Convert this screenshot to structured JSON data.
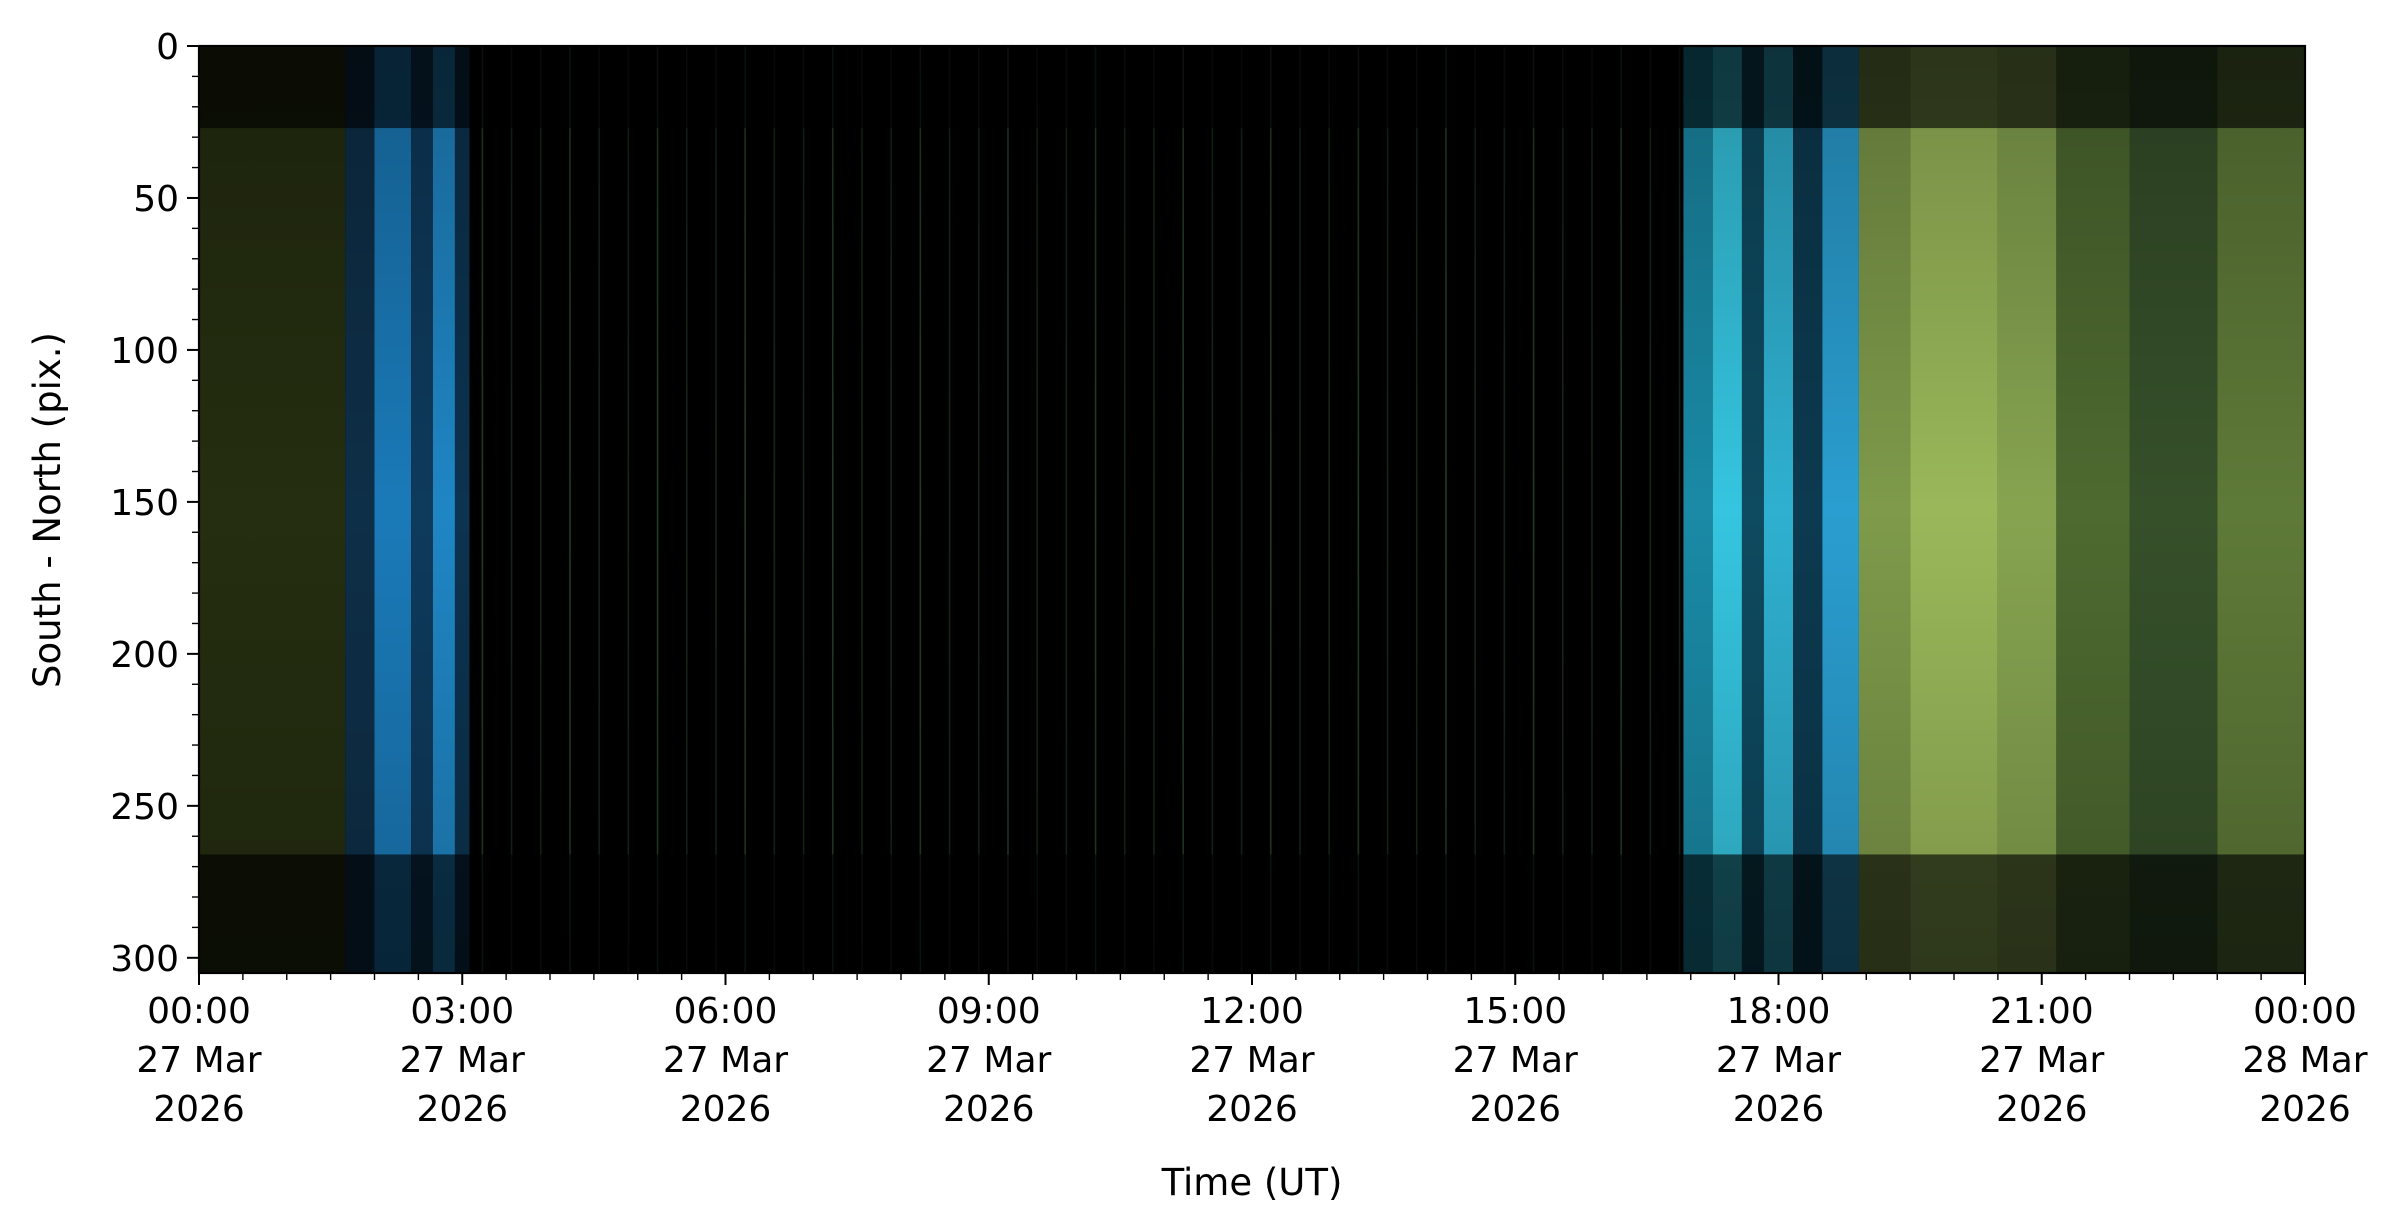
{
  "chart_data": {
    "type": "heatmap",
    "title": "",
    "xlabel": "Time (UT)",
    "ylabel": "South - North (pix.)",
    "x_range": [
      "2026-03-27T00:00",
      "2026-03-28T00:00"
    ],
    "y_range": [
      0,
      305
    ],
    "y_inverted": true,
    "grid": false,
    "x_ticks": [
      {
        "value": "2026-03-27T00:00",
        "lines": [
          "00:00",
          "27 Mar",
          "2026"
        ]
      },
      {
        "value": "2026-03-27T03:00",
        "lines": [
          "03:00",
          "27 Mar",
          "2026"
        ]
      },
      {
        "value": "2026-03-27T06:00",
        "lines": [
          "06:00",
          "27 Mar",
          "2026"
        ]
      },
      {
        "value": "2026-03-27T09:00",
        "lines": [
          "09:00",
          "27 Mar",
          "2026"
        ]
      },
      {
        "value": "2026-03-27T12:00",
        "lines": [
          "12:00",
          "27 Mar",
          "2026"
        ]
      },
      {
        "value": "2026-03-27T15:00",
        "lines": [
          "15:00",
          "27 Mar",
          "2026"
        ]
      },
      {
        "value": "2026-03-27T18:00",
        "lines": [
          "18:00",
          "27 Mar",
          "2026"
        ]
      },
      {
        "value": "2026-03-27T21:00",
        "lines": [
          "21:00",
          "27 Mar",
          "2026"
        ]
      },
      {
        "value": "2026-03-28T00:00",
        "lines": [
          "00:00",
          "28 Mar",
          "2026"
        ]
      }
    ],
    "y_ticks": [
      0,
      50,
      100,
      150,
      200,
      250,
      300
    ],
    "segments": [
      {
        "start": "2026-03-27T00:00",
        "end": "2026-03-27T01:40",
        "color": "#252e10"
      },
      {
        "start": "2026-03-27T01:40",
        "end": "2026-03-27T02:00",
        "color": "#0e2f48"
      },
      {
        "start": "2026-03-27T02:00",
        "end": "2026-03-27T02:25",
        "color": "#1a7ab8"
      },
      {
        "start": "2026-03-27T02:25",
        "end": "2026-03-27T02:40",
        "color": "#0e3a5c"
      },
      {
        "start": "2026-03-27T02:40",
        "end": "2026-03-27T02:55",
        "color": "#1f86c4"
      },
      {
        "start": "2026-03-27T02:55",
        "end": "2026-03-27T03:05",
        "color": "#0c3350"
      },
      {
        "start": "2026-03-27T03:05",
        "end": "2026-03-27T16:55",
        "color": "#000000"
      },
      {
        "start": "2026-03-27T16:55",
        "end": "2026-03-27T17:15",
        "color": "#1a8aa6"
      },
      {
        "start": "2026-03-27T17:15",
        "end": "2026-03-27T17:35",
        "color": "#35c5e0"
      },
      {
        "start": "2026-03-27T17:35",
        "end": "2026-03-27T17:50",
        "color": "#0e4a60"
      },
      {
        "start": "2026-03-27T17:50",
        "end": "2026-03-27T18:10",
        "color": "#2fb0d0"
      },
      {
        "start": "2026-03-27T18:10",
        "end": "2026-03-27T18:30",
        "color": "#0c3a50"
      },
      {
        "start": "2026-03-27T18:30",
        "end": "2026-03-27T18:55",
        "color": "#2a9ed0"
      },
      {
        "start": "2026-03-27T18:55",
        "end": "2026-03-27T19:30",
        "color": "#7e9a4a"
      },
      {
        "start": "2026-03-27T19:30",
        "end": "2026-03-27T20:30",
        "color": "#9ab85a"
      },
      {
        "start": "2026-03-27T20:30",
        "end": "2026-03-27T21:10",
        "color": "#86a450"
      },
      {
        "start": "2026-03-27T21:10",
        "end": "2026-03-27T22:00",
        "color": "#4e6a30"
      },
      {
        "start": "2026-03-27T22:00",
        "end": "2026-03-27T23:00",
        "color": "#36502a"
      },
      {
        "start": "2026-03-27T23:00",
        "end": "2026-03-28T00:00",
        "color": "#5e7a38"
      }
    ],
    "dark_bands_y": [
      [
        0,
        27
      ],
      [
        266,
        305
      ]
    ],
    "faint_line_color": "#3f6a48"
  }
}
